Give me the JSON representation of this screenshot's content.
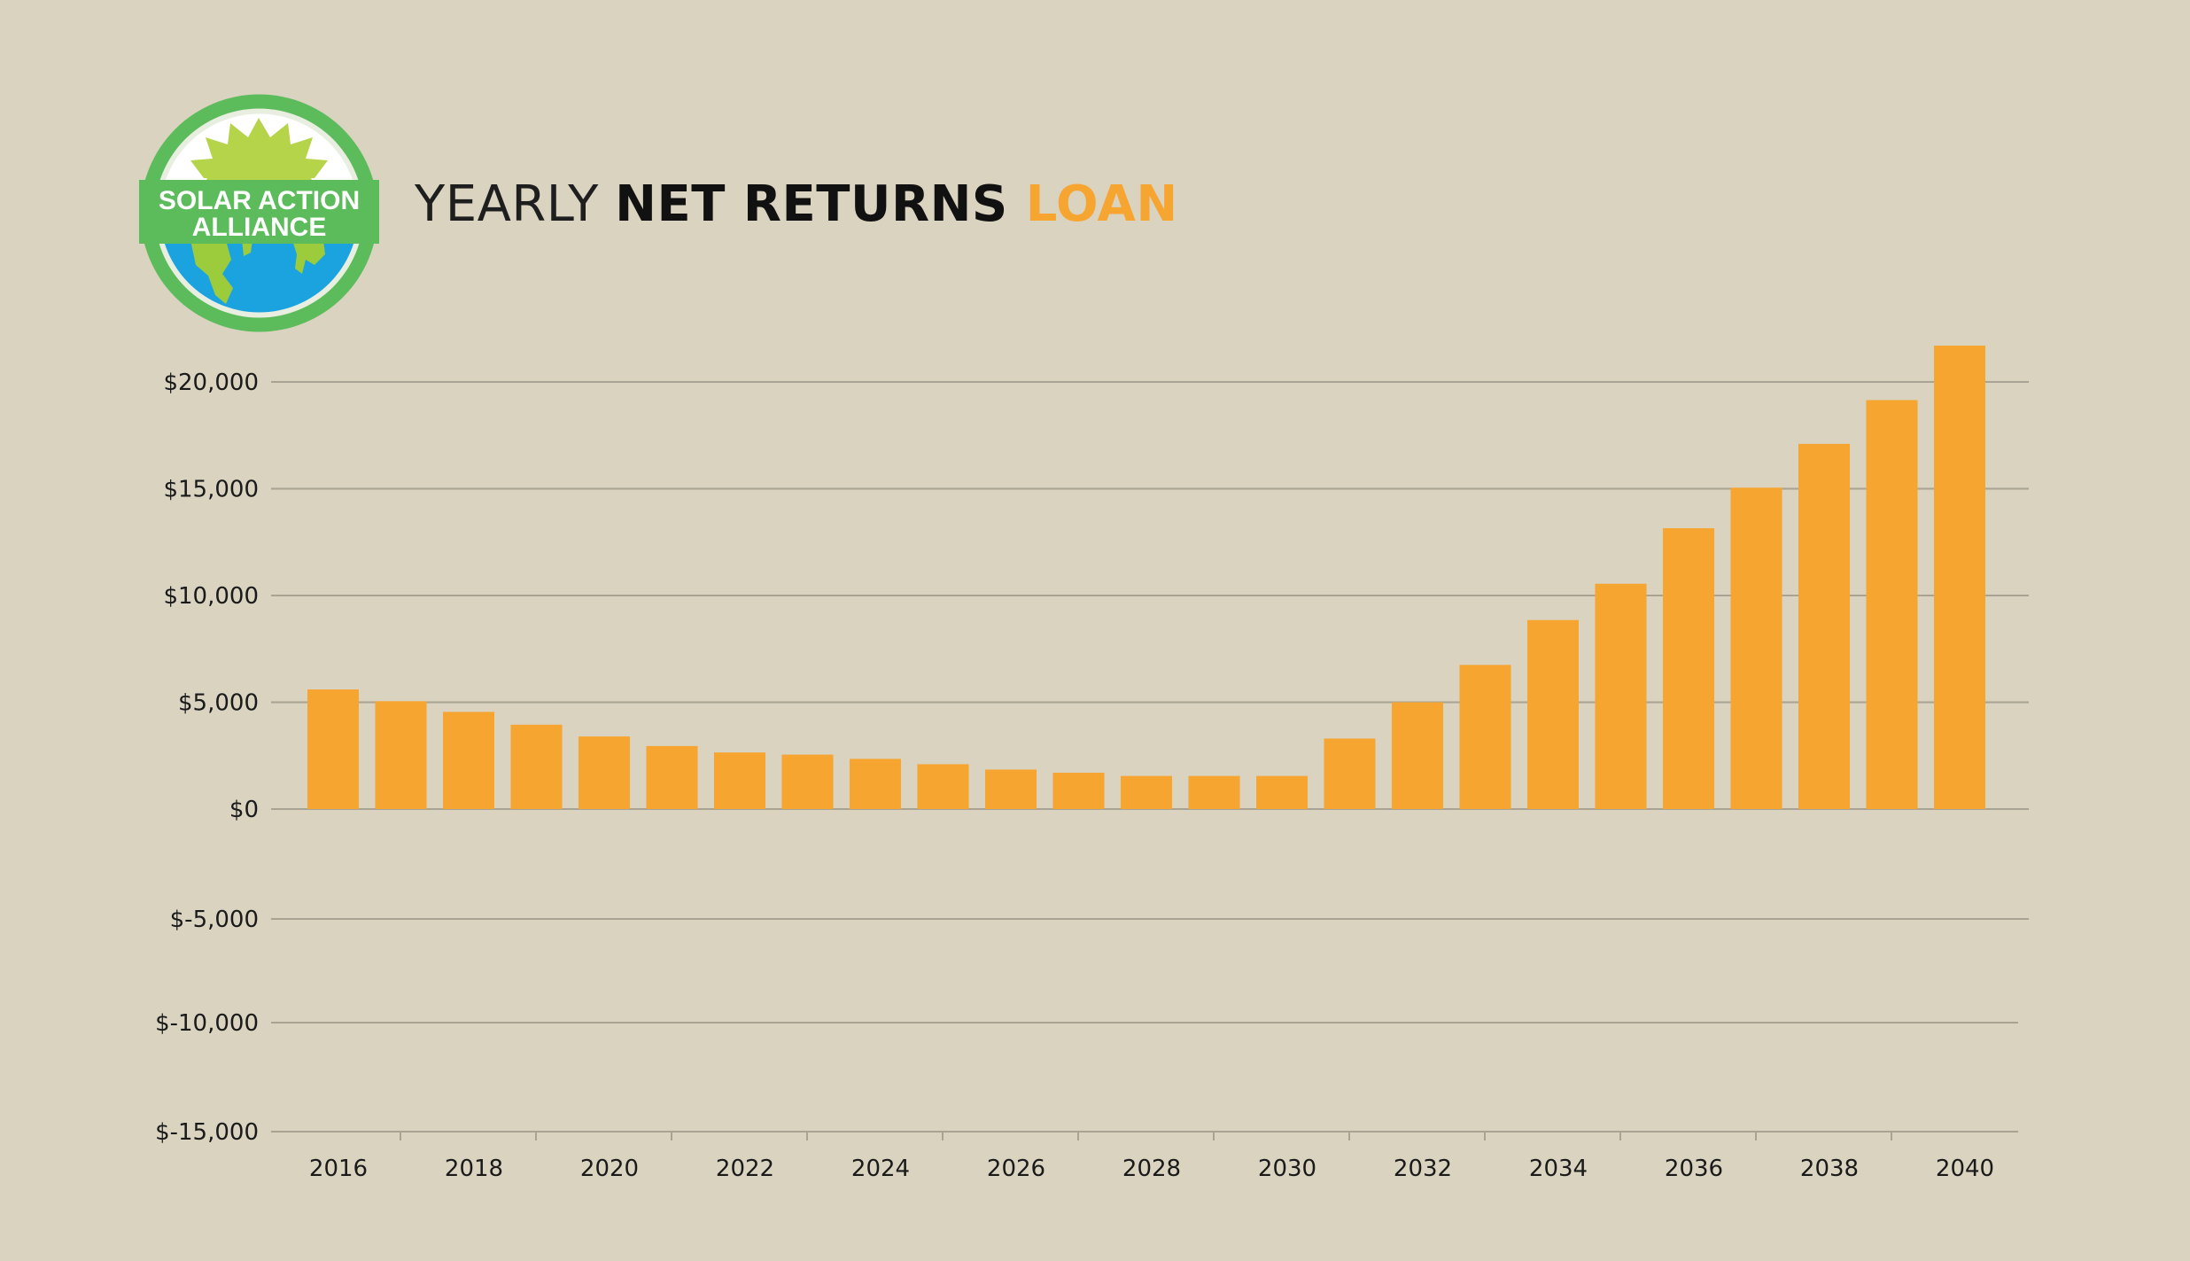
{
  "logo": {
    "line1": "SOLAR ACTION",
    "line2": "ALLIANCE",
    "colors": {
      "ring": "#5cbb5a",
      "sun": "#b5d44a",
      "sky": "#ffffff",
      "ocean": "#1aa3df",
      "land": "#9ccc3c",
      "banner": "#5cbb5a"
    }
  },
  "title": {
    "part1": "YEARLY ",
    "part2": "NET RETURNS ",
    "part3": "LOAN"
  },
  "colors": {
    "background": "#d9d3c0",
    "bar": "#f7a531",
    "grid": "#a8a392"
  },
  "chart_data": {
    "type": "bar",
    "categories": [
      "2016",
      "2017",
      "2018",
      "2019",
      "2020",
      "2021",
      "2022",
      "2023",
      "2024",
      "2025",
      "2026",
      "2027",
      "2028",
      "2029",
      "2030",
      "2031",
      "2032",
      "2033",
      "2034",
      "2035",
      "2036",
      "2037",
      "2038",
      "2039",
      "2040"
    ],
    "values": [
      5600,
      5050,
      4550,
      3950,
      3400,
      2950,
      2650,
      2550,
      2350,
      2100,
      1850,
      1700,
      1550,
      1550,
      1550,
      3300,
      5000,
      6750,
      8850,
      10550,
      13150,
      15050,
      17100,
      19150,
      21700
    ],
    "x_tick_labels": [
      "2016",
      "2018",
      "2020",
      "2022",
      "2024",
      "2026",
      "2028",
      "2030",
      "2032",
      "2034",
      "2036",
      "2038",
      "2040"
    ],
    "y_ticks": [
      20000,
      15000,
      10000,
      5000,
      0,
      -5000,
      -10000,
      -15000
    ],
    "y_tick_labels": [
      "$20,000",
      "$15,000",
      "$10,000",
      "$5,000",
      "$0",
      "$-5,000",
      "$-10,000",
      "$-15,000"
    ],
    "ylim": [
      -15000,
      20000
    ],
    "grid": true,
    "legend": "none",
    "title": "YEARLY NET RETURNS LOAN",
    "xlabel": "",
    "ylabel": ""
  }
}
